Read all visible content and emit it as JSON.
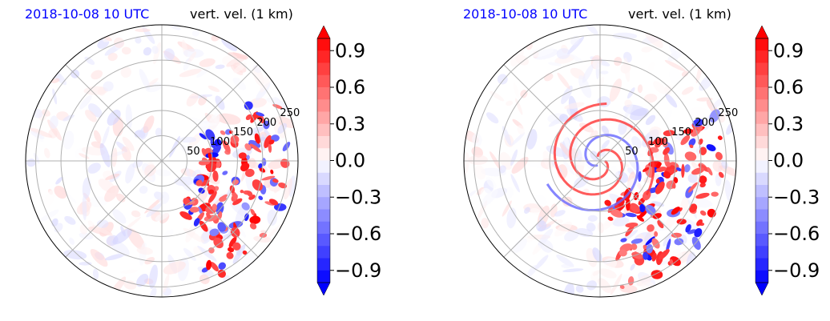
{
  "chart_data": [
    {
      "type": "heatmap",
      "projection": "polar",
      "title_left": "2018-10-08 10 UTC",
      "title_right": "vert. vel. (1 km)",
      "radial_ticks": [
        50,
        100,
        150,
        200,
        250
      ],
      "colorbar": {
        "ticks": [
          -0.9,
          -0.6,
          -0.3,
          0.0,
          0.3,
          0.6,
          0.9
        ],
        "tick_labels": [
          "−0.9",
          "−0.6",
          "−0.3",
          "0.0",
          "0.3",
          "0.6",
          "0.9"
        ],
        "range": [
          -1.0,
          1.0
        ],
        "colormap": "bwr",
        "extend": "both"
      },
      "grid": true
    },
    {
      "type": "heatmap",
      "projection": "polar",
      "title_left": "2018-10-08 10 UTC",
      "title_right": "vert. vel. (1 km)",
      "radial_ticks": [
        50,
        100,
        150,
        200,
        250
      ],
      "colorbar": {
        "ticks": [
          -0.9,
          -0.6,
          -0.3,
          0.0,
          0.3,
          0.6,
          0.9
        ],
        "tick_labels": [
          "−0.9",
          "−0.6",
          "−0.3",
          "0.0",
          "0.3",
          "0.6",
          "0.9"
        ],
        "range": [
          -1.0,
          1.0
        ],
        "colormap": "bwr",
        "extend": "both"
      },
      "grid": true
    }
  ],
  "colors": {
    "positive": "#ff0000",
    "negative": "#0000ff",
    "zero": "#ffffff",
    "title_time": "#0000ff",
    "grid": "#b0b0b0"
  }
}
